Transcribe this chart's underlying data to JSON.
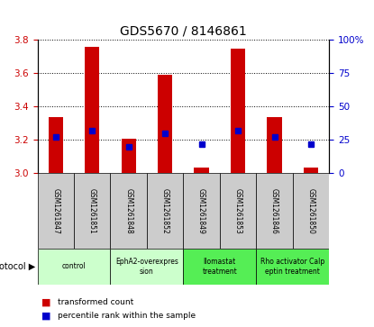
{
  "title": "GDS5670 / 8146861",
  "samples": [
    "GSM1261847",
    "GSM1261851",
    "GSM1261848",
    "GSM1261852",
    "GSM1261849",
    "GSM1261853",
    "GSM1261846",
    "GSM1261850"
  ],
  "transformed_count": [
    3.335,
    3.755,
    3.205,
    3.59,
    3.035,
    3.745,
    3.335,
    3.035
  ],
  "percentile_rank": [
    27,
    32,
    20,
    30,
    22,
    32,
    27,
    22
  ],
  "bar_bottom": 3.0,
  "ylim_left": [
    3.0,
    3.8
  ],
  "ylim_right": [
    0,
    100
  ],
  "yticks_left": [
    3.0,
    3.2,
    3.4,
    3.6,
    3.8
  ],
  "yticks_right": [
    0,
    25,
    50,
    75,
    100
  ],
  "ytick_labels_right": [
    "0",
    "25",
    "50",
    "75",
    "100%"
  ],
  "protocols": [
    {
      "label": "control",
      "samples": [
        0,
        1
      ],
      "color": "#ccffcc"
    },
    {
      "label": "EphA2-overexpres\nsion",
      "samples": [
        2,
        3
      ],
      "color": "#ccffcc"
    },
    {
      "label": "Ilomastat\ntreatment",
      "samples": [
        4,
        5
      ],
      "color": "#55ee55"
    },
    {
      "label": "Rho activator Calp\neptin treatment",
      "samples": [
        6,
        7
      ],
      "color": "#55ee55"
    }
  ],
  "bar_color": "#cc0000",
  "marker_color": "#0000cc",
  "sample_bg_color": "#cccccc",
  "title_fontsize": 10,
  "tick_label_color_left": "#cc0000",
  "tick_label_color_right": "#0000cc",
  "bar_width": 0.4
}
